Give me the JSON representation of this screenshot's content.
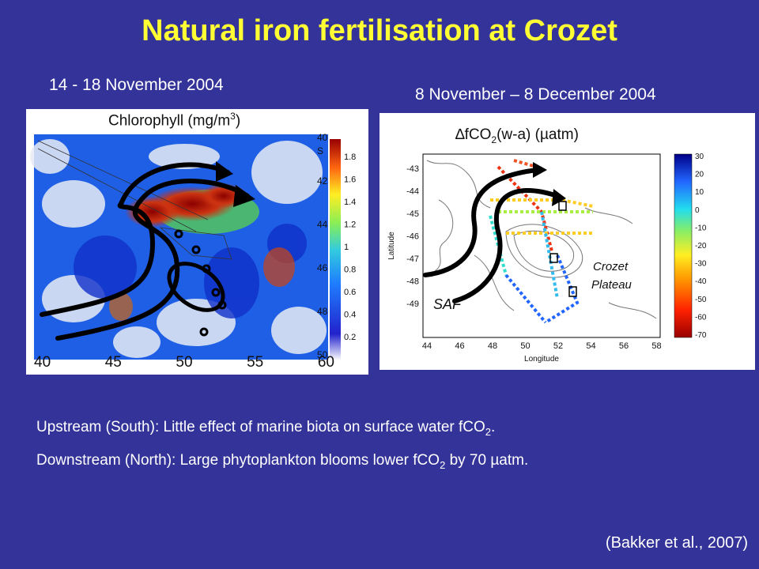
{
  "slide": {
    "title": "Natural iron fertilisation at Crozet",
    "date_left": "14 - 18 November 2004",
    "date_right": "8 November – 8 December 2004",
    "reference": "(Bakker et al., 2007)"
  },
  "left_map": {
    "title_main": "Chlorophyll (mg/m",
    "title_sup": "3",
    "title_end": ")",
    "longitude_labels": [
      "40",
      "45",
      "50",
      "55",
      "60"
    ],
    "latitude_labels": [
      "40",
      "42",
      "44",
      "46",
      "48",
      "50"
    ],
    "colorbar_labels": [
      "1.8",
      "1.6",
      "1.4",
      "1.2",
      "1",
      "0.8",
      "0.6",
      "0.4",
      "0.2"
    ],
    "corner_label": "S"
  },
  "right_map": {
    "title_main": "∆fCO",
    "title_sub": "2",
    "title_end": "(w-a) (µatm)",
    "ylabel": "Latitude",
    "xlabel": "Longitude",
    "y_ticks": [
      "-43",
      "-44",
      "-45",
      "-46",
      "-47",
      "-48",
      "-49"
    ],
    "x_ticks": [
      "44",
      "46",
      "48",
      "50",
      "52",
      "54",
      "56",
      "58"
    ],
    "colorbar_labels": [
      "30",
      "20",
      "10",
      "0",
      "-10",
      "-20",
      "-30",
      "-40",
      "-50",
      "-60",
      "-70"
    ],
    "label_saf": "SAF",
    "label_plateau_line1": "Crozet",
    "label_plateau_line2": "Plateau"
  },
  "captions": {
    "line1_main": "Upstream (South): Little effect of marine biota on surface water fCO",
    "line1_sub": "2",
    "line1_end": ".",
    "line2_main": "Downstream (North): Large phytoplankton blooms lower fCO",
    "line2_sub": "2",
    "line2_end": " by 70 µatm."
  },
  "colors": {
    "background": "#333399",
    "title": "#ffff33",
    "text": "#ffffff"
  }
}
